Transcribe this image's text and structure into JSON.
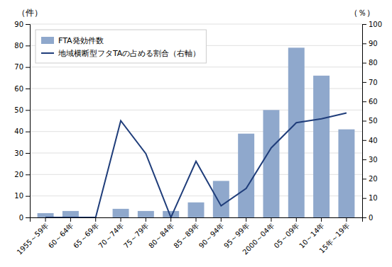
{
  "chart_data": {
    "type": "bar",
    "categories": [
      "1955～59年",
      "60～64年",
      "65～69年",
      "70～74年",
      "75～79年",
      "80～84年",
      "85～89年",
      "90～94年",
      "95～99年",
      "2000～04年",
      "05～09年",
      "10～14年",
      "15年～19年"
    ],
    "series": [
      {
        "name": "FTA発効件数",
        "type": "bar",
        "color": "#8fa8cc",
        "values": [
          2,
          3,
          0,
          4,
          3,
          3,
          7,
          17,
          39,
          50,
          79,
          66,
          41
        ]
      },
      {
        "name": "地域横断型フタTAの占める割合（右軸）",
        "type": "line",
        "color": "#1f3d7a",
        "axis": "y2",
        "values": [
          0,
          0,
          0,
          50,
          33,
          0,
          29,
          6,
          15,
          36,
          49,
          51,
          54
        ]
      }
    ],
    "ylabel": "（件）",
    "y2label": "（％）",
    "ylim": [
      0,
      90
    ],
    "yticks": [
      0,
      10,
      20,
      30,
      40,
      50,
      60,
      70,
      80,
      90
    ],
    "y2lim": [
      0,
      100
    ],
    "y2ticks": [
      0,
      10,
      20,
      30,
      40,
      50,
      60,
      70,
      80,
      90,
      100
    ],
    "grid": true,
    "legend": "upper left"
  }
}
